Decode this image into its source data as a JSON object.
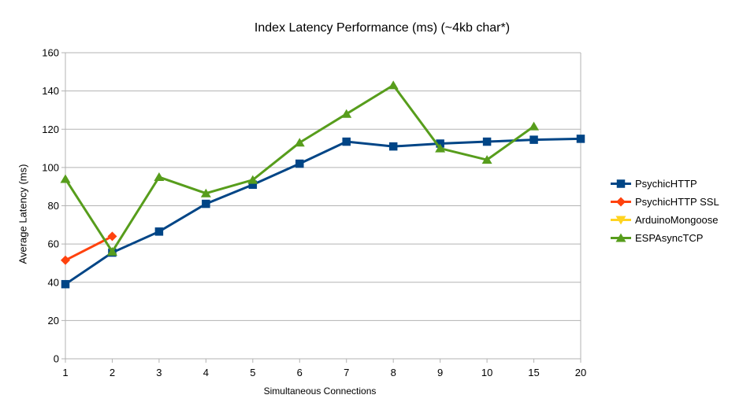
{
  "page": {
    "background": "#ffffff",
    "text_color": "#000000"
  },
  "chart_data": {
    "type": "line",
    "title": "Index Latency Performance (ms) (~4kb char*)",
    "xlabel": "Simultaneous Connections",
    "ylabel": "Average Latency (ms)",
    "categories": [
      "1",
      "2",
      "3",
      "4",
      "5",
      "6",
      "7",
      "8",
      "9",
      "10",
      "15",
      "20"
    ],
    "ylim": [
      0,
      160
    ],
    "y_ticks": [
      0,
      20,
      40,
      60,
      80,
      100,
      120,
      140,
      160
    ],
    "grid": "horizontal",
    "axis_color": "#b3b3b3",
    "legend_position": "right",
    "series": [
      {
        "name": "PsychicHTTP",
        "color": "#004586",
        "marker": "square",
        "values": [
          39,
          55.5,
          66.5,
          81,
          91,
          102,
          113.5,
          111,
          112.5,
          113.5,
          114.5,
          115
        ]
      },
      {
        "name": "PsychicHTTP SSL",
        "color": "#ff420e",
        "marker": "diamond",
        "values": [
          51.5,
          64,
          null,
          null,
          null,
          null,
          null,
          null,
          null,
          null,
          null,
          null
        ]
      },
      {
        "name": "ArduinoMongoose",
        "color": "#ffd320",
        "marker": "triangle-down",
        "values": [
          null,
          null,
          null,
          null,
          null,
          null,
          null,
          null,
          null,
          null,
          null,
          null
        ]
      },
      {
        "name": "ESPAsyncTCP",
        "color": "#579d1c",
        "marker": "triangle-up",
        "values": [
          94,
          56,
          95,
          86.5,
          93.5,
          113,
          128,
          143,
          110,
          104,
          121.5,
          null
        ]
      }
    ]
  }
}
